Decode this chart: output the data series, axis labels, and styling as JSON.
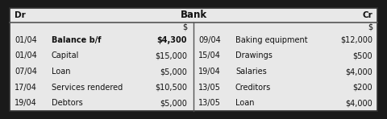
{
  "title": "Bank",
  "outer_bg": "#1a1a1a",
  "table_bg": "#e8e8e8",
  "border_color": "#333333",
  "line_color": "#555555",
  "left_header": "Dr",
  "right_header": "Cr",
  "dollar_label": "$",
  "text_color": "#111111",
  "left_rows": [
    {
      "date": "01/04",
      "desc": "Balance b/f",
      "amount": "$4,300",
      "bold_desc": true,
      "bold_amt": true
    },
    {
      "date": "01/04",
      "desc": "Capital",
      "amount": "$15,000",
      "bold_desc": false,
      "bold_amt": false
    },
    {
      "date": "07/04",
      "desc": "Loan",
      "amount": "$5,000",
      "bold_desc": false,
      "bold_amt": false
    },
    {
      "date": "17/04",
      "desc": "Services rendered",
      "amount": "$10,500",
      "bold_desc": false,
      "bold_amt": false
    },
    {
      "date": "19/04",
      "desc": "Debtors",
      "amount": "$5,000",
      "bold_desc": false,
      "bold_amt": false
    }
  ],
  "right_rows": [
    {
      "date": "09/04",
      "desc": "Baking equipment",
      "amount": "$12,000"
    },
    {
      "date": "15/04",
      "desc": "Drawings",
      "amount": "$500"
    },
    {
      "date": "19/04",
      "desc": "Salaries",
      "amount": "$4,000"
    },
    {
      "date": "13/05",
      "desc": "Creditors",
      "amount": "$200"
    },
    {
      "date": "13/05",
      "desc": "Loan",
      "amount": "$4,000"
    }
  ],
  "fig_width": 4.8,
  "fig_height": 1.48,
  "dpi": 100
}
